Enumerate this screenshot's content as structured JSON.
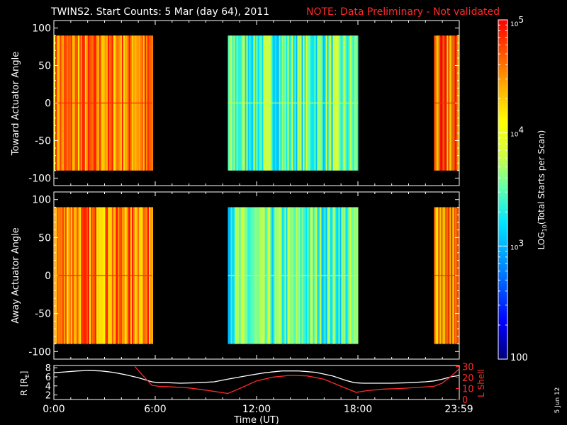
{
  "title": {
    "main": "TWINS2. Start Counts:  5 Mar (day  64), 2011",
    "note": "NOTE: Data Preliminary - Not validated"
  },
  "footer_date": "5 Jun 12",
  "colors": {
    "background": "#000000",
    "foreground": "#ffffff",
    "note": "#ff2a2a",
    "lshell": "#ff2a2a"
  },
  "chart_data": [
    {
      "type": "heatmap",
      "ylabel": "Toward Actuator Angle",
      "yticks": [
        "100",
        "50",
        "0",
        "-50",
        "-100"
      ],
      "ytick_values": [
        100,
        50,
        0,
        -50,
        -100
      ],
      "ylim": [
        -110,
        110
      ],
      "data_extent_y": [
        -90,
        90
      ],
      "xlim": [
        0,
        24
      ],
      "data_segments_ut": [
        [
          0,
          5.83
        ],
        [
          10.3,
          18.0
        ],
        [
          22.5,
          24.0
        ]
      ],
      "segment_levels": [
        4.5,
        3.3,
        4.5
      ],
      "scale": "log10",
      "units": "counts"
    },
    {
      "type": "heatmap",
      "ylabel": "Away Actuator Angle",
      "yticks": [
        "100",
        "50",
        "0",
        "-50",
        "-100"
      ],
      "ytick_values": [
        100,
        50,
        0,
        -50,
        -100
      ],
      "ylim": [
        -110,
        110
      ],
      "data_extent_y": [
        -90,
        90
      ],
      "xlim": [
        0,
        24
      ],
      "data_segments_ut": [
        [
          0,
          5.83
        ],
        [
          10.3,
          18.0
        ],
        [
          22.5,
          24.0
        ]
      ],
      "segment_levels": [
        4.5,
        3.3,
        4.5
      ],
      "scale": "log10",
      "units": "counts"
    },
    {
      "type": "line",
      "ylabel": "R [RE]",
      "ylabel_base": "R [R",
      "ylabel_sub": "E",
      "ylabel_close": "]",
      "y2label": "L Shell",
      "xlabel": "Time (UT)",
      "xticks": [
        "0:00",
        "6:00",
        "12:00",
        "18:00",
        "23:59"
      ],
      "xtick_values": [
        0,
        6,
        12,
        18,
        23.98
      ],
      "xlim": [
        0,
        24
      ],
      "yticks": [
        "8",
        "6",
        "4",
        "2"
      ],
      "ytick_values": [
        8,
        6,
        4,
        2
      ],
      "ylim": [
        1,
        8.5
      ],
      "y2ticks": [
        "30",
        "20",
        "10",
        "0"
      ],
      "y2tick_values": [
        30,
        20,
        10,
        0
      ],
      "y2lim": [
        0,
        31
      ],
      "series": [
        {
          "name": "R",
          "axis": "left",
          "color": "#ffffff",
          "x": [
            0,
            0.7,
            1.4,
            2.1,
            2.8,
            3.5,
            4.2,
            5.0,
            5.8,
            6.2,
            6.8,
            7.5,
            8.5,
            9.5,
            10.3,
            11.5,
            12.5,
            13.5,
            14.5,
            15.5,
            16.5,
            17.3,
            17.8,
            18.3,
            19.0,
            20.0,
            21.0,
            22.0,
            22.5,
            23.0,
            23.5,
            24.0
          ],
          "y": [
            6.9,
            7.1,
            7.3,
            7.4,
            7.3,
            7.0,
            6.5,
            5.8,
            4.9,
            4.7,
            4.7,
            4.6,
            4.7,
            4.9,
            5.5,
            6.3,
            6.9,
            7.3,
            7.3,
            7.0,
            6.2,
            5.2,
            4.7,
            4.6,
            4.6,
            4.6,
            4.7,
            4.9,
            5.1,
            5.5,
            6.0,
            6.3
          ]
        },
        {
          "name": "L Shell",
          "axis": "right",
          "color": "#ff2a2a",
          "x": [
            4.8,
            5.2,
            5.8,
            6.2,
            7.0,
            8.0,
            9.0,
            10.3,
            11.0,
            12.0,
            13.0,
            14.0,
            15.0,
            16.0,
            17.0,
            17.9,
            18.5,
            19.5,
            20.5,
            21.5,
            22.5,
            23.0,
            23.5,
            24.0
          ],
          "y": [
            30,
            23,
            13,
            12,
            11.5,
            10.5,
            8.5,
            5.5,
            10,
            17,
            20.5,
            22,
            21.5,
            18.5,
            12,
            6.5,
            8,
            9.5,
            10,
            11,
            12,
            15,
            21,
            28
          ]
        }
      ]
    }
  ],
  "colorbar": {
    "label_base": "LOG",
    "label_sub": "10",
    "label_rest": "(Total Starts per Scan)",
    "ticks": [
      {
        "base": "10",
        "exp": "5",
        "value": 5
      },
      {
        "base": "10",
        "exp": "4",
        "value": 4
      },
      {
        "base": "10",
        "exp": "3",
        "value": 3
      },
      {
        "base": "100",
        "exp": "",
        "value": 2
      }
    ],
    "range": [
      2,
      5
    ],
    "colormap": [
      "#00007a",
      "#0000ff",
      "#0080ff",
      "#00e5ff",
      "#5cffb0",
      "#d0ff40",
      "#ffff00",
      "#ffb000",
      "#ff5500",
      "#ff0000"
    ]
  }
}
